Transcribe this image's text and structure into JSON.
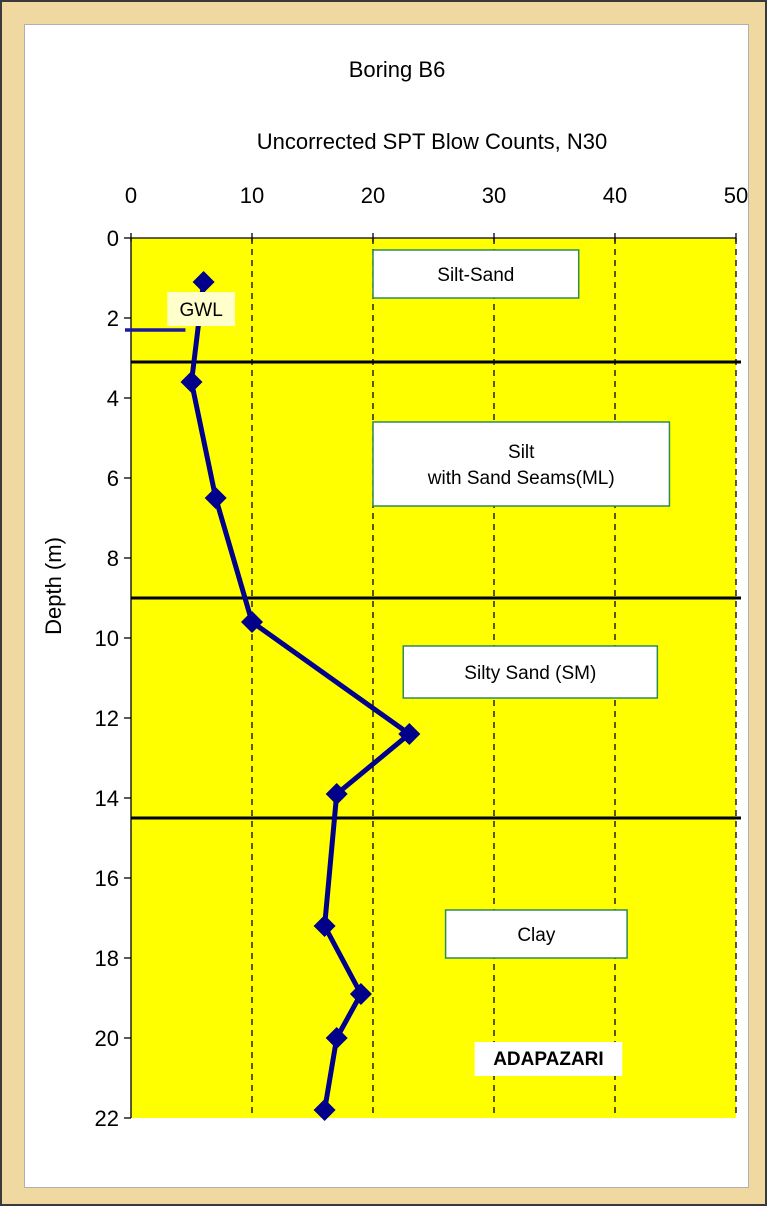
{
  "chart_data": {
    "type": "line",
    "title": "Boring B6",
    "xlabel": "Uncorrected SPT Blow Counts, N30",
    "ylabel": "Depth (m)",
    "xlim": [
      0,
      50
    ],
    "ylim": [
      0,
      22
    ],
    "y_inverted": true,
    "x_axis_position": "top",
    "x_ticks": [
      0,
      10,
      20,
      30,
      40,
      50
    ],
    "y_ticks": [
      0,
      2,
      4,
      6,
      8,
      10,
      12,
      14,
      16,
      18,
      20,
      22
    ],
    "plot_background": "#ffff00",
    "grid": "vertical dashed",
    "series": [
      {
        "color": "#00008b",
        "marker": "diamond",
        "points": [
          {
            "x": 6,
            "y": 1.1
          },
          {
            "x": 5,
            "y": 3.6
          },
          {
            "x": 7,
            "y": 6.5
          },
          {
            "x": 10,
            "y": 9.6
          },
          {
            "x": 23,
            "y": 12.4
          },
          {
            "x": 17,
            "y": 13.9
          },
          {
            "x": 16,
            "y": 17.2
          },
          {
            "x": 19,
            "y": 18.9
          },
          {
            "x": 17,
            "y": 20.0
          },
          {
            "x": 16,
            "y": 21.8
          }
        ]
      }
    ],
    "layer_boundaries": [
      3.1,
      9.0,
      14.5
    ],
    "gwl": {
      "label": "GWL",
      "depth": 2.3,
      "color": "#1a1aa0"
    },
    "layer_labels": [
      {
        "text": [
          "Silt-Sand"
        ],
        "x_range": [
          20,
          37
        ],
        "y_range": [
          0.3,
          1.5
        ],
        "border": "#2e8b57"
      },
      {
        "text": [
          "Silt",
          "with Sand Seams(ML)"
        ],
        "x_range": [
          20,
          44.5
        ],
        "y_range": [
          4.6,
          6.7
        ],
        "border": "#2e8b57"
      },
      {
        "text": [
          "Silty Sand (SM)"
        ],
        "x_range": [
          22.5,
          43.5
        ],
        "y_range": [
          10.2,
          11.5
        ],
        "border": "#2e8b57"
      },
      {
        "text": [
          "Clay"
        ],
        "x_range": [
          26,
          41
        ],
        "y_range": [
          16.8,
          18.0
        ],
        "border": "#2e8b57"
      }
    ],
    "site_label": {
      "text": "ADAPAZARI",
      "x": 34.5,
      "y": 20.5
    }
  }
}
